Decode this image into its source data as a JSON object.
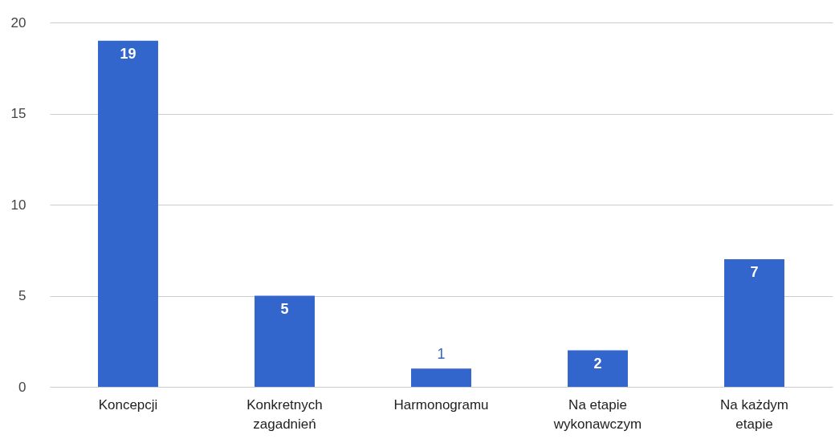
{
  "chart_data": {
    "type": "bar",
    "categories": [
      "Koncepcji",
      "Konkretnych zagadnień",
      "Harmonogramu",
      "Na etapie wykonawczym",
      "Na każdym etapie"
    ],
    "values": [
      19,
      5,
      1,
      2,
      7
    ],
    "color": "#3366cc",
    "ylim": [
      0,
      20
    ],
    "yticks": [
      0,
      5,
      10,
      15,
      20
    ],
    "grid": "y",
    "data_labels": true
  }
}
